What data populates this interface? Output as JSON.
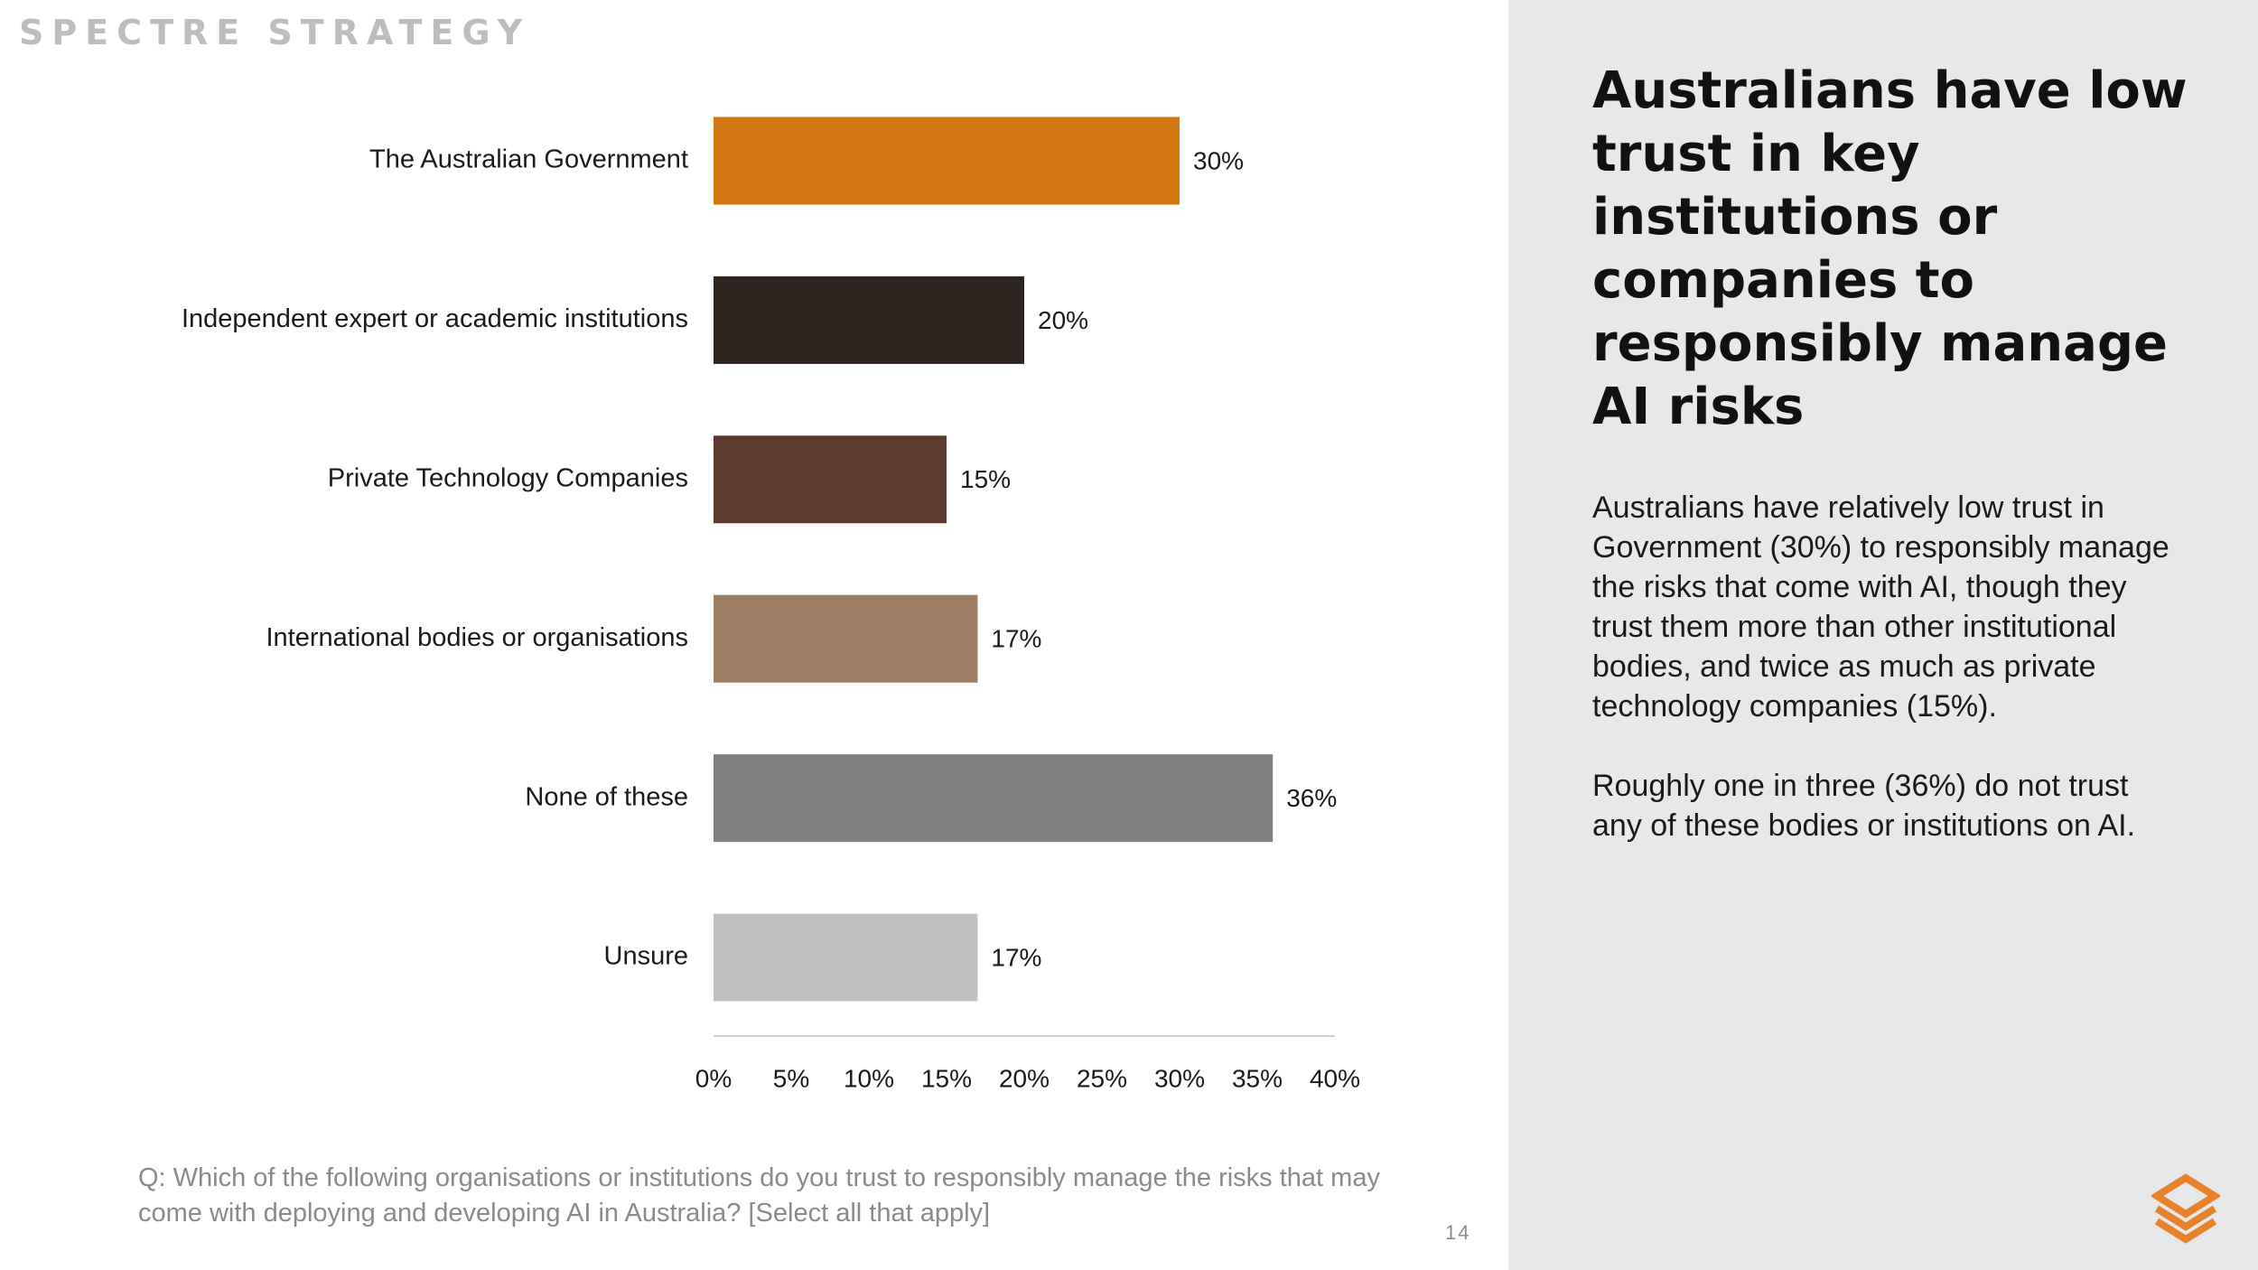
{
  "brand": {
    "name": "SPECTRE STRATEGY"
  },
  "chart_data": {
    "type": "bar",
    "orientation": "horizontal",
    "categories": [
      "The Australian Government",
      "Independent expert or academic institutions",
      "Private Technology Companies",
      "International bodies or organisations",
      "None of these",
      "Unsure"
    ],
    "values": [
      30,
      20,
      15,
      17,
      36,
      17
    ],
    "value_labels": [
      "30%",
      "20%",
      "15%",
      "17%",
      "36%",
      "17%"
    ],
    "colors": [
      "#D47612",
      "#2E2420",
      "#5C3A2E",
      "#9D7E62",
      "#808080",
      "#C0C0C0"
    ],
    "xlim": [
      0,
      40
    ],
    "xticks": [
      0,
      5,
      10,
      15,
      20,
      25,
      30,
      35,
      40
    ],
    "xtick_labels": [
      "0%",
      "5%",
      "10%",
      "15%",
      "20%",
      "25%",
      "30%",
      "35%",
      "40%"
    ],
    "grid": false,
    "legend": "none"
  },
  "question": "Q: Which of the following organisations or institutions do you trust to responsibly manage the risks that may come with deploying and developing AI in Australia? [Select all that apply]",
  "page_number": "14",
  "panel": {
    "headline": "Australians have low trust in key institutions or companies to responsibly manage AI risks",
    "paragraph_1": "Australians have relatively low trust in Government (30%) to responsibly manage the risks that come with AI, though they trust them more than other institutional bodies, and twice as much as private technology companies (15%).",
    "paragraph_2": "Roughly one in three (36%) do not trust any of these bodies or institutions on AI."
  },
  "logo": {
    "icon": "spectre-logo-icon",
    "color": "#E8822A"
  }
}
